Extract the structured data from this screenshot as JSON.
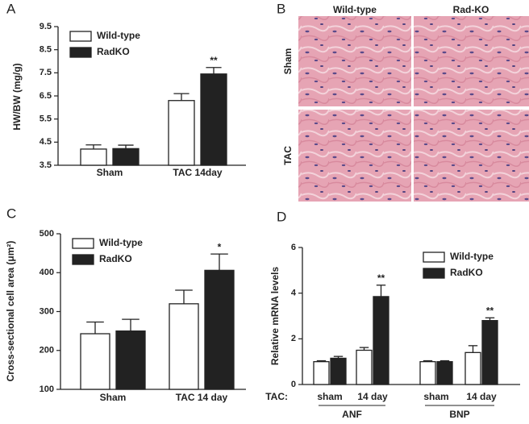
{
  "chart_data": [
    {
      "type": "bar",
      "panel": "A",
      "ylabel": "HW/BW (mg/g)",
      "categories": [
        "Sham",
        "TAC 14day"
      ],
      "ylim": [
        3.5,
        9.5
      ],
      "yticks": [
        3.5,
        4.5,
        5.5,
        6.5,
        7.5,
        8.5,
        9.5
      ],
      "legend": "upper left",
      "series": [
        {
          "name": "Wild-type",
          "color": "#ffffff",
          "values": [
            4.2,
            6.3
          ],
          "errors": [
            0.18,
            0.3
          ],
          "significance": [
            null,
            null
          ]
        },
        {
          "name": "RadKO",
          "color": "#222222",
          "values": [
            4.22,
            7.45
          ],
          "errors": [
            0.15,
            0.28
          ],
          "significance": [
            null,
            "**"
          ]
        }
      ]
    },
    {
      "type": "bar",
      "panel": "C",
      "ylabel": "Cross-sectional cell area (μm²)",
      "categories": [
        "Sham",
        "TAC 14 day"
      ],
      "ylim": [
        100,
        500
      ],
      "yticks": [
        100,
        200,
        300,
        400,
        500
      ],
      "legend": "upper left",
      "series": [
        {
          "name": "Wild-type",
          "color": "#ffffff",
          "values": [
            243,
            320
          ],
          "errors": [
            30,
            35
          ],
          "significance": [
            null,
            null
          ]
        },
        {
          "name": "RadKO",
          "color": "#222222",
          "values": [
            250,
            406
          ],
          "errors": [
            30,
            42
          ],
          "significance": [
            null,
            "*"
          ]
        }
      ]
    },
    {
      "type": "bar",
      "panel": "D",
      "ylabel": "Relative mRNA levels",
      "xlabel": "TAC:",
      "categories": [
        "sham",
        "14 day",
        "sham",
        "14 day"
      ],
      "groups": [
        "ANF",
        "BNP"
      ],
      "ylim": [
        0,
        6
      ],
      "yticks": [
        0,
        2,
        4,
        6
      ],
      "legend": "upper right",
      "series": [
        {
          "name": "Wild-type",
          "color": "#ffffff",
          "values": [
            1.0,
            1.5,
            1.0,
            1.4
          ],
          "errors": [
            0.04,
            0.12,
            0.04,
            0.3
          ],
          "significance": [
            null,
            null,
            null,
            null
          ]
        },
        {
          "name": "RadKO",
          "color": "#222222",
          "values": [
            1.15,
            3.85,
            1.0,
            2.8
          ],
          "errors": [
            0.08,
            0.5,
            0.04,
            0.12
          ],
          "significance": [
            null,
            "**",
            null,
            "**"
          ]
        }
      ]
    }
  ],
  "histology": {
    "panel": "B",
    "columns": [
      "Wild-type",
      "Rad-KO"
    ],
    "rows": [
      "Sham",
      "TAC"
    ]
  }
}
